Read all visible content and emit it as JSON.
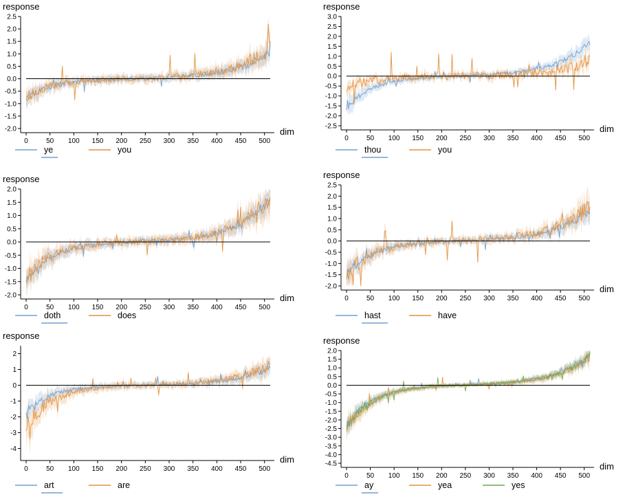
{
  "colors": {
    "blue": "#6e9fd0",
    "orange": "#e3913e",
    "green": "#6aa84f",
    "axis": "#000000"
  },
  "chart_data": [
    {
      "type": "line",
      "title": "",
      "xlabel": "dim",
      "ylabel": "response",
      "xlim": [
        0,
        512
      ],
      "ylim": [
        -2.0,
        2.5
      ],
      "xticks": [
        "0",
        "50",
        "100",
        "150",
        "200",
        "250",
        "300",
        "350",
        "400",
        "450",
        "500"
      ],
      "yticks": [
        "-2.0",
        "-1.5",
        "-1.0",
        "-0.5",
        "0.0",
        "0.5",
        "1.0",
        "1.5",
        "2.0",
        "2.5"
      ],
      "series": [
        {
          "name": "ye",
          "color": "blue",
          "underlined": true,
          "start": -0.75,
          "end": 1.05,
          "noise": 0.12,
          "band": 0.35,
          "seed": 11
        },
        {
          "name": "you",
          "color": "orange",
          "underlined": false,
          "start": -0.7,
          "end": 1.3,
          "noise": 0.18,
          "band": 0.4,
          "seed": 23
        }
      ]
    },
    {
      "type": "line",
      "title": "",
      "xlabel": "dim",
      "ylabel": "response",
      "xlim": [
        0,
        512
      ],
      "ylim": [
        -2.5,
        3.0
      ],
      "xticks": [
        "0",
        "50",
        "100",
        "150",
        "200",
        "250",
        "300",
        "350",
        "400",
        "450",
        "500"
      ],
      "yticks": [
        "-2.5",
        "-2.0",
        "-1.5",
        "-1.0",
        "-0.5",
        "0.0",
        "0.5",
        "1.0",
        "1.5",
        "2.0",
        "2.5",
        "3.0"
      ],
      "series": [
        {
          "name": "thou",
          "color": "blue",
          "underlined": true,
          "start": -1.6,
          "end": 1.7,
          "noise": 0.08,
          "band": 0.3,
          "seed": 31
        },
        {
          "name": "you",
          "color": "orange",
          "underlined": false,
          "start": -0.6,
          "end": 0.8,
          "noise": 0.28,
          "band": 0.45,
          "seed": 47
        }
      ]
    },
    {
      "type": "line",
      "title": "",
      "xlabel": "dim",
      "ylabel": "response",
      "xlim": [
        0,
        512
      ],
      "ylim": [
        -2.0,
        2.0
      ],
      "xticks": [
        "0",
        "50",
        "100",
        "150",
        "200",
        "250",
        "300",
        "350",
        "400",
        "450",
        "500"
      ],
      "yticks": [
        "-2.0",
        "-1.5",
        "-1.0",
        "-0.5",
        "0.0",
        "0.5",
        "1.0",
        "1.5",
        "2.0"
      ],
      "series": [
        {
          "name": "doth",
          "color": "blue",
          "underlined": true,
          "start": -1.4,
          "end": 1.6,
          "noise": 0.1,
          "band": 0.35,
          "seed": 53
        },
        {
          "name": "does",
          "color": "orange",
          "underlined": false,
          "start": -1.4,
          "end": 1.7,
          "noise": 0.18,
          "band": 0.4,
          "seed": 61
        }
      ]
    },
    {
      "type": "line",
      "title": "",
      "xlabel": "dim",
      "ylabel": "response",
      "xlim": [
        0,
        512
      ],
      "ylim": [
        -2.0,
        2.5
      ],
      "xticks": [
        "0",
        "50",
        "100",
        "150",
        "200",
        "250",
        "300",
        "350",
        "400",
        "450",
        "500"
      ],
      "yticks": [
        "-2.0",
        "-1.5",
        "-1.0",
        "-0.5",
        "0.0",
        "0.5",
        "1.0",
        "1.5",
        "2.0",
        "2.5"
      ],
      "series": [
        {
          "name": "hast",
          "color": "blue",
          "underlined": true,
          "start": -1.5,
          "end": 1.4,
          "noise": 0.1,
          "band": 0.35,
          "seed": 71
        },
        {
          "name": "have",
          "color": "orange",
          "underlined": false,
          "start": -1.5,
          "end": 1.6,
          "noise": 0.2,
          "band": 0.4,
          "seed": 83
        }
      ]
    },
    {
      "type": "line",
      "title": "",
      "xlabel": "dim",
      "ylabel": "response",
      "xlim": [
        0,
        512
      ],
      "ylim": [
        -4.5,
        2.5
      ],
      "xticks": [
        "0",
        "50",
        "100",
        "150",
        "200",
        "250",
        "300",
        "350",
        "400",
        "450",
        "500"
      ],
      "yticks": [
        "-4",
        "-3",
        "-2",
        "-1",
        "0",
        "1",
        "2"
      ],
      "series": [
        {
          "name": "art",
          "color": "blue",
          "underlined": true,
          "start": -1.6,
          "end": 1.1,
          "noise": 0.12,
          "band": 0.45,
          "seed": 97
        },
        {
          "name": "are",
          "color": "orange",
          "underlined": false,
          "start": -2.6,
          "end": 1.3,
          "noise": 0.2,
          "band": 0.5,
          "seed": 101
        }
      ]
    },
    {
      "type": "line",
      "title": "",
      "xlabel": "dim",
      "ylabel": "response",
      "xlim": [
        0,
        512
      ],
      "ylim": [
        -4.5,
        2.0
      ],
      "xticks": [
        "0",
        "50",
        "100",
        "150",
        "200",
        "250",
        "300",
        "350",
        "400",
        "450",
        "500"
      ],
      "yticks": [
        "-4.5",
        "-4.0",
        "-3.5",
        "-3.0",
        "-2.5",
        "-2.0",
        "-1.5",
        "-1.0",
        "-0.5",
        "0.0",
        "0.5",
        "1.0",
        "1.5",
        "2.0"
      ],
      "series": [
        {
          "name": "ay",
          "color": "blue",
          "underlined": true,
          "start": -2.3,
          "end": 1.7,
          "noise": 0.07,
          "band": 0.25,
          "seed": 113
        },
        {
          "name": "yea",
          "color": "orange",
          "underlined": false,
          "start": -2.5,
          "end": 1.6,
          "noise": 0.12,
          "band": 0.3,
          "seed": 127
        },
        {
          "name": "yes",
          "color": "green",
          "underlined": false,
          "start": -2.4,
          "end": 1.7,
          "noise": 0.1,
          "band": 0.25,
          "seed": 131
        }
      ]
    }
  ]
}
